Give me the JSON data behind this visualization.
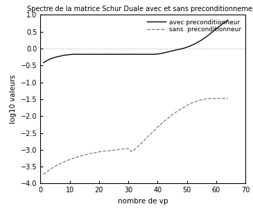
{
  "title": "Spectre de la matrice Schur Duale avec et sans preconditionnement",
  "xlabel": "nombre de vp",
  "ylabel": "log10 valeurs",
  "xlim": [
    0,
    70
  ],
  "ylim": [
    -4,
    1
  ],
  "yticks": [
    1,
    0.5,
    0,
    -0.5,
    -1,
    -1.5,
    -2,
    -2.5,
    -3,
    -3.5,
    -4
  ],
  "xticks": [
    0,
    10,
    20,
    30,
    40,
    50,
    60,
    70
  ],
  "legend_labels": [
    "avec preconditionneur",
    "sans  preconditionneur"
  ],
  "line1_color": "#000000",
  "line2_color": "#666666",
  "line1_style": "-",
  "line2_style": "--",
  "hline_y": 0,
  "hline_color": "#aaaaaa",
  "hline_style": ":",
  "avec_x": [
    1,
    2,
    3,
    4,
    5,
    6,
    7,
    8,
    9,
    10,
    11,
    12,
    13,
    14,
    15,
    16,
    17,
    18,
    19,
    20,
    21,
    22,
    23,
    24,
    25,
    26,
    27,
    28,
    29,
    30,
    31,
    32,
    33,
    34,
    35,
    36,
    37,
    38,
    39,
    40,
    41,
    42,
    43,
    44,
    45,
    46,
    47,
    48,
    49,
    50,
    51,
    52,
    53,
    54,
    55,
    56,
    57,
    58,
    59,
    60,
    61,
    62,
    63,
    64
  ],
  "avec_y": [
    -0.42,
    -0.37,
    -0.32,
    -0.29,
    -0.26,
    -0.24,
    -0.22,
    -0.2,
    -0.19,
    -0.18,
    -0.17,
    -0.17,
    -0.17,
    -0.17,
    -0.17,
    -0.17,
    -0.17,
    -0.17,
    -0.17,
    -0.17,
    -0.17,
    -0.17,
    -0.17,
    -0.17,
    -0.17,
    -0.17,
    -0.17,
    -0.17,
    -0.17,
    -0.17,
    -0.17,
    -0.17,
    -0.17,
    -0.17,
    -0.17,
    -0.17,
    -0.17,
    -0.17,
    -0.17,
    -0.16,
    -0.15,
    -0.13,
    -0.11,
    -0.09,
    -0.07,
    -0.05,
    -0.03,
    -0.01,
    0.01,
    0.04,
    0.07,
    0.11,
    0.15,
    0.2,
    0.25,
    0.31,
    0.37,
    0.44,
    0.51,
    0.58,
    0.65,
    0.72,
    0.78,
    0.84
  ],
  "sans_x": [
    1,
    2,
    3,
    4,
    5,
    6,
    7,
    8,
    9,
    10,
    11,
    12,
    13,
    14,
    15,
    16,
    17,
    18,
    19,
    20,
    21,
    22,
    23,
    24,
    25,
    26,
    27,
    28,
    29,
    30,
    31,
    32,
    33,
    34,
    35,
    36,
    37,
    38,
    39,
    40,
    41,
    42,
    43,
    44,
    45,
    46,
    47,
    48,
    49,
    50,
    51,
    52,
    53,
    54,
    55,
    56,
    57,
    58,
    59,
    60,
    61,
    62,
    63,
    64
  ],
  "sans_y": [
    -3.73,
    -3.66,
    -3.6,
    -3.54,
    -3.49,
    -3.44,
    -3.4,
    -3.36,
    -3.32,
    -3.29,
    -3.26,
    -3.23,
    -3.2,
    -3.18,
    -3.15,
    -3.13,
    -3.11,
    -3.09,
    -3.08,
    -3.06,
    -3.05,
    -3.04,
    -3.03,
    -3.02,
    -3.01,
    -3.0,
    -2.99,
    -2.98,
    -2.97,
    -2.96,
    -3.05,
    -3.0,
    -2.92,
    -2.84,
    -2.76,
    -2.67,
    -2.58,
    -2.5,
    -2.42,
    -2.33,
    -2.25,
    -2.17,
    -2.1,
    -2.03,
    -1.96,
    -1.9,
    -1.84,
    -1.79,
    -1.74,
    -1.69,
    -1.64,
    -1.6,
    -1.57,
    -1.54,
    -1.52,
    -1.5,
    -1.49,
    -1.48,
    -1.48,
    -1.48,
    -1.48,
    -1.48,
    -1.48,
    -1.48
  ]
}
